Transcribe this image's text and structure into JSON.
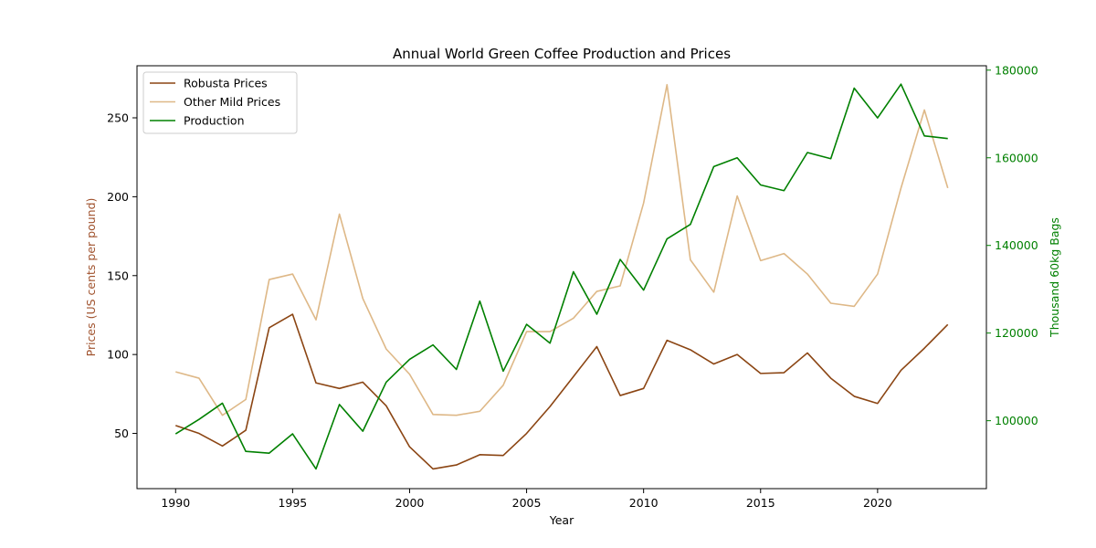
{
  "chart_data": {
    "type": "line",
    "title": "Annual World Green Coffee Production and Prices",
    "xlabel": "Year",
    "ylabel_left": "Prices (US cents per pound)",
    "ylabel_right": "Thousand 60kg Bags",
    "x": [
      1990,
      1991,
      1992,
      1993,
      1994,
      1995,
      1996,
      1997,
      1998,
      1999,
      2000,
      2001,
      2002,
      2003,
      2004,
      2005,
      2006,
      2007,
      2008,
      2009,
      2010,
      2011,
      2012,
      2013,
      2014,
      2015,
      2016,
      2017,
      2018,
      2019,
      2020,
      2021,
      2022,
      2023
    ],
    "xlim": [
      1988.35,
      2024.65
    ],
    "xticks": [
      1990,
      1995,
      2000,
      2005,
      2010,
      2015,
      2020
    ],
    "ylim_left": [
      15,
      283
    ],
    "yticks_left": [
      50,
      100,
      150,
      200,
      250
    ],
    "ylim_right": [
      84500,
      181000
    ],
    "yticks_right": [
      100000,
      120000,
      140000,
      160000,
      180000
    ],
    "grid": false,
    "legend_position": "upper-left",
    "series": [
      {
        "name": "Robusta Prices",
        "axis": "left",
        "color": "#8B4513",
        "values": [
          55,
          50,
          42,
          52,
          117,
          125.5,
          82,
          78.5,
          82.5,
          67.5,
          41.5,
          27.5,
          30,
          36.5,
          36,
          50,
          67,
          86,
          105,
          74,
          78.5,
          109,
          103,
          94,
          100,
          88,
          88.5,
          101,
          85,
          73.5,
          69,
          90,
          104,
          119
        ]
      },
      {
        "name": "Other Mild Prices",
        "axis": "left",
        "color": "#DEB887",
        "values": [
          89,
          85,
          61.5,
          71.5,
          147.5,
          151,
          122,
          189,
          135.5,
          103.5,
          87.5,
          62,
          61.5,
          64,
          80.5,
          114.5,
          114.5,
          123,
          140,
          143.5,
          196,
          271,
          160,
          139.5,
          200.5,
          159.5,
          164,
          151,
          132.5,
          130.5,
          151,
          205.5,
          255,
          205.5
        ]
      },
      {
        "name": "Production",
        "axis": "right",
        "color": "#008000",
        "values": [
          97000,
          100300,
          104000,
          93000,
          92600,
          97000,
          89000,
          103700,
          97600,
          108800,
          114000,
          117300,
          111700,
          127300,
          111300,
          122000,
          117700,
          134000,
          124300,
          136800,
          129800,
          141500,
          144800,
          158000,
          160000,
          153800,
          152500,
          161200,
          159800,
          175900,
          169100,
          176800,
          165000,
          164400
        ]
      }
    ]
  }
}
